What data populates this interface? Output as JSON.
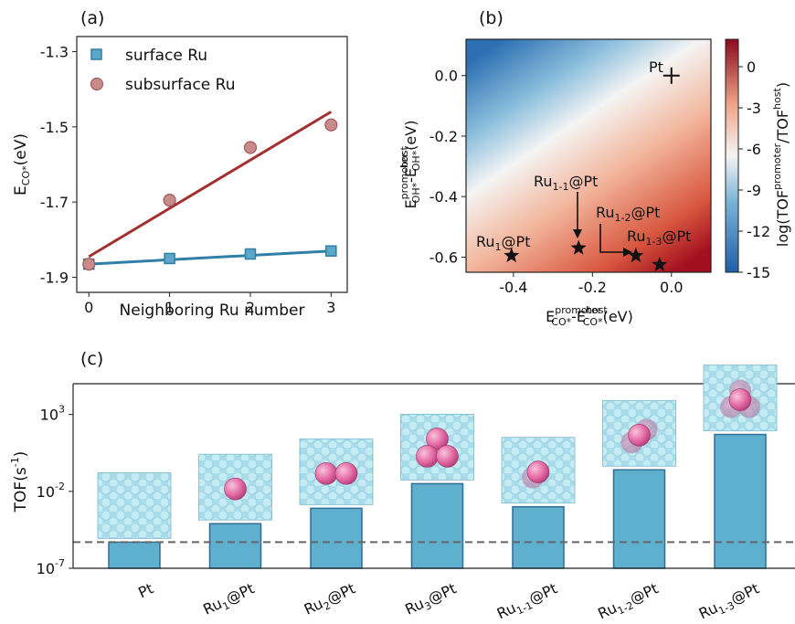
{
  "figure": {
    "panel_a_label": "(a)",
    "panel_b_label": "(b)",
    "panel_c_label": "(c)"
  },
  "chart_data": [
    {
      "panel": "a",
      "type": "scatter",
      "xlabel": "Neighboring Ru number",
      "ylabel": "E_CO*(eV)",
      "xlim": [
        -0.15,
        3.2
      ],
      "ylim": [
        -1.94,
        -1.26
      ],
      "xticks": [
        0,
        1,
        2,
        3
      ],
      "yticks": [
        -1.3,
        -1.5,
        -1.7,
        -1.9
      ],
      "xtick_labels": [
        "0",
        "1",
        "2",
        "3"
      ],
      "ytick_labels": [
        "-1.3",
        "-1.5",
        "-1.7",
        "-1.9"
      ],
      "legend_position": "top-left",
      "grid": false,
      "series": [
        {
          "name": "surface Ru",
          "marker": "square",
          "color": "#5aa7c8",
          "line_color": "#2f7fa6",
          "x": [
            0,
            1,
            2,
            3
          ],
          "y": [
            -1.865,
            -1.85,
            -1.838,
            -1.83
          ],
          "fit": {
            "x": [
              0,
              3
            ],
            "y": [
              -1.865,
              -1.83
            ]
          }
        },
        {
          "name": "subsurface Ru",
          "marker": "circle",
          "color": "#c98a8a",
          "line_color": "#a33030",
          "x": [
            0,
            1,
            2,
            3
          ],
          "y": [
            -1.865,
            -1.695,
            -1.555,
            -1.495
          ],
          "fit": {
            "x": [
              0,
              3
            ],
            "y": [
              -1.845,
              -1.46
            ]
          }
        }
      ]
    },
    {
      "panel": "b",
      "type": "heatmap",
      "xlabel": "E_CO*^promoter-E_CO*^host (eV)",
      "ylabel": "E_OH*^promoter-E_OH*^host (eV)",
      "xlim": [
        -0.52,
        0.1
      ],
      "ylim": [
        -0.65,
        0.12
      ],
      "xticks": [
        -0.4,
        -0.2,
        0.0
      ],
      "yticks": [
        0.0,
        -0.2,
        -0.4,
        -0.6
      ],
      "xtick_labels": [
        "-0.4",
        "-0.2",
        "0.0"
      ],
      "ytick_labels": [
        "0.0",
        "-0.2",
        "-0.4",
        "-0.6"
      ],
      "colorbar": {
        "label": "log(TOF^promoter/TOF^host)",
        "range": [
          -15,
          2
        ],
        "ticks": [
          0,
          -3,
          -6,
          -9,
          -12,
          -15
        ],
        "tick_labels": [
          "0",
          "-3",
          "-6",
          "-9",
          "-12",
          "-15"
        ]
      },
      "points": [
        {
          "label": "Pt",
          "x": 0.0,
          "y": 0.0,
          "marker": "plus"
        },
        {
          "label": "Ru1@Pt",
          "x": -0.405,
          "y": -0.595,
          "marker": "star"
        },
        {
          "label": "Ru1-1@Pt",
          "x": -0.235,
          "y": -0.57,
          "marker": "star"
        },
        {
          "label": "Ru1-2@Pt",
          "x": -0.09,
          "y": -0.595,
          "marker": "star"
        },
        {
          "label": "Ru1-3@Pt",
          "x": -0.03,
          "y": -0.625,
          "marker": "star"
        }
      ],
      "point_labels": {
        "pt": "Pt",
        "ru1": {
          "main": "Ru",
          "sub": "1",
          "rest": "@Pt"
        },
        "ru11": {
          "main": "Ru",
          "sub": "1-1",
          "rest": "@Pt"
        },
        "ru12": {
          "main": "Ru",
          "sub": "1-2",
          "rest": "@Pt"
        },
        "ru13": {
          "main": "Ru",
          "sub": "1-3",
          "rest": "@Pt"
        }
      }
    },
    {
      "panel": "c",
      "type": "bar",
      "ylabel": "TOF(s^-1)",
      "yscale": "log",
      "ylim_log10": [
        -7,
        5
      ],
      "yticks_log10": [
        3,
        -2,
        -7
      ],
      "categories": [
        "Pt",
        "Ru1@Pt",
        "Ru2@Pt",
        "Ru3@Pt",
        "Ru1-1@Pt",
        "Ru1-2@Pt",
        "Ru1-3@Pt"
      ],
      "category_labels": [
        {
          "main": "Pt",
          "sub": ""
        },
        {
          "main": "Ru",
          "sub": "1",
          "rest": "@Pt"
        },
        {
          "main": "Ru",
          "sub": "2",
          "rest": "@Pt"
        },
        {
          "main": "Ru",
          "sub": "3",
          "rest": "@Pt"
        },
        {
          "main": "Ru",
          "sub": "1-1",
          "rest": "@Pt"
        },
        {
          "main": "Ru",
          "sub": "1-2",
          "rest": "@Pt"
        },
        {
          "main": "Ru",
          "sub": "1-3",
          "rest": "@Pt"
        }
      ],
      "values_log10": [
        -5.3,
        -4.1,
        -3.1,
        -1.5,
        -3.0,
        -0.6,
        1.7
      ],
      "bar_color": "#5fb0cf",
      "bar_edge": "#2f6f95",
      "reference_line_log10": -5.3,
      "inset_ru_atoms": [
        0,
        1,
        2,
        3,
        1,
        2,
        3
      ]
    }
  ]
}
